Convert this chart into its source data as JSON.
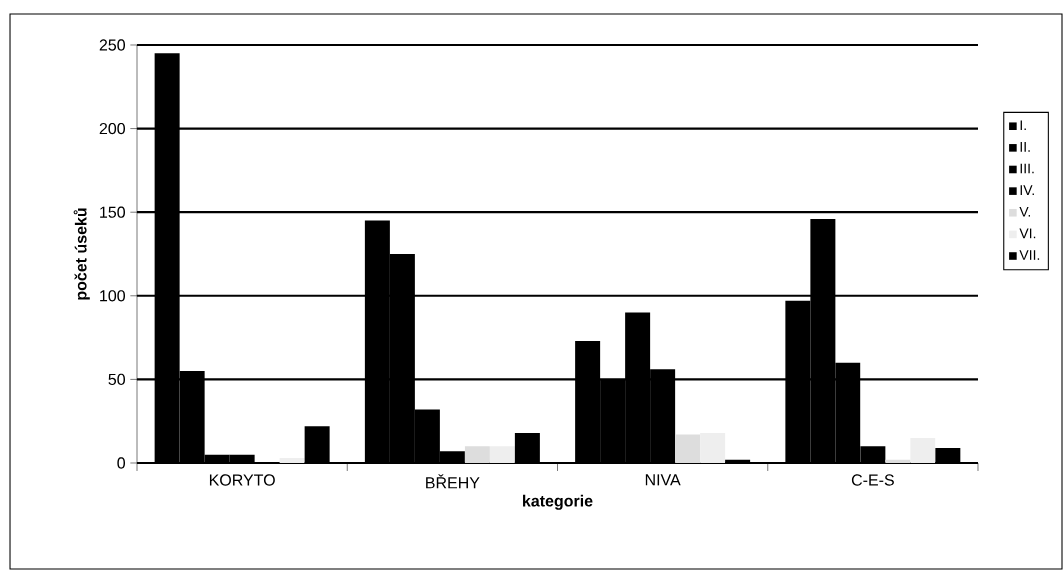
{
  "chart_data": {
    "type": "bar",
    "xlabel": "kategorie",
    "ylabel": "počet úseků",
    "categories": [
      "KORYTO",
      "BŘEHY",
      "NIVA",
      "C-E-S"
    ],
    "series": [
      {
        "name": "I.",
        "color": "#000000",
        "values": [
          245,
          145,
          73,
          97
        ]
      },
      {
        "name": "II.",
        "color": "#000000",
        "values": [
          55,
          125,
          50,
          146
        ]
      },
      {
        "name": "III.",
        "color": "#000000",
        "values": [
          5,
          32,
          90,
          60
        ]
      },
      {
        "name": "IV.",
        "color": "#000000",
        "values": [
          5,
          7,
          56,
          10
        ]
      },
      {
        "name": "V.",
        "color": "#dddddd",
        "values": [
          null,
          10,
          17,
          2
        ]
      },
      {
        "name": "VI.",
        "color": "#eeeeee",
        "values": [
          3,
          10,
          18,
          15
        ]
      },
      {
        "name": "VII.",
        "color": "#000000",
        "values": [
          22,
          18,
          2,
          9
        ]
      }
    ],
    "ylim": [
      0,
      250
    ],
    "yticks": [
      0,
      50,
      100,
      150,
      200,
      250
    ],
    "grid": "y",
    "legend": "right"
  }
}
